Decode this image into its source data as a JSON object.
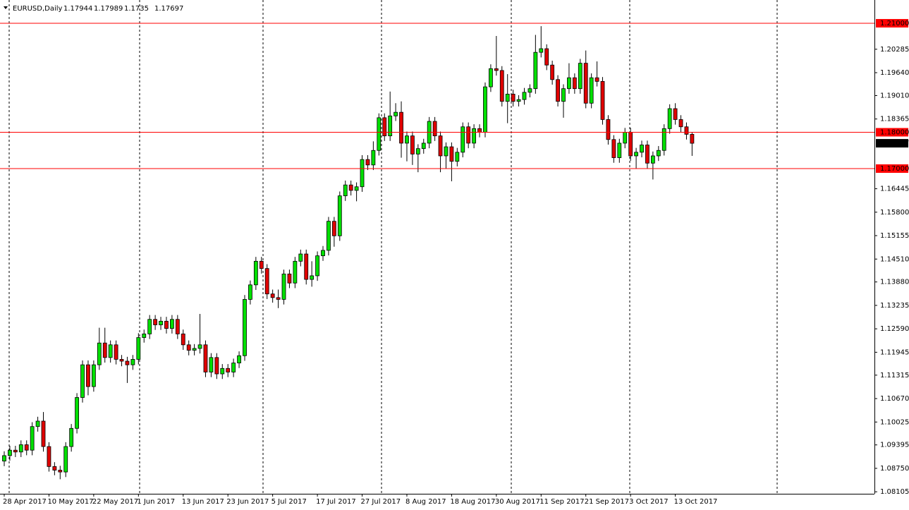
{
  "chart_data": {
    "type": "candlestick",
    "symbol": "EURUSD,Daily",
    "categories": [
      "28 Apr 2017",
      null,
      null,
      null,
      null,
      null,
      null,
      null,
      "10 May 2017",
      null,
      null,
      null,
      null,
      null,
      null,
      null,
      "22 May 2017",
      null,
      null,
      null,
      null,
      null,
      null,
      null,
      "1 Jun 2017",
      null,
      null,
      null,
      null,
      null,
      null,
      null,
      "13 Jun 2017",
      null,
      null,
      null,
      null,
      null,
      null,
      null,
      "23 Jun 2017",
      null,
      null,
      null,
      null,
      null,
      null,
      null,
      "5 Jul 2017",
      null,
      null,
      null,
      null,
      null,
      null,
      null,
      "17 Jul 2017",
      null,
      null,
      null,
      null,
      null,
      null,
      null,
      "27 Jul 2017",
      null,
      null,
      null,
      null,
      null,
      null,
      null,
      "8 Aug 2017",
      null,
      null,
      null,
      null,
      null,
      null,
      null,
      "18 Aug 2017",
      null,
      null,
      null,
      null,
      null,
      null,
      null,
      "30 Aug 2017",
      null,
      null,
      null,
      null,
      null,
      null,
      null,
      "11 Sep 2017",
      null,
      null,
      null,
      null,
      null,
      null,
      null,
      "21 Sep 2017",
      null,
      null,
      null,
      null,
      null,
      null,
      null,
      "3 Oct 2017",
      null,
      null,
      null,
      null,
      null,
      null,
      null,
      "13 Oct 2017",
      null,
      null,
      null
    ],
    "open": [
      1.0895,
      1.091,
      1.0925,
      1.092,
      1.094,
      1.0925,
      1.099,
      1.1005,
      1.0935,
      1.088,
      1.087,
      1.0865,
      1.0935,
      1.0985,
      1.107,
      1.116,
      1.11,
      1.116,
      1.122,
      1.118,
      1.1215,
      1.1175,
      1.117,
      1.116,
      1.1175,
      1.1235,
      1.1245,
      1.1285,
      1.127,
      1.128,
      1.126,
      1.1285,
      1.1245,
      1.1215,
      1.12,
      1.1205,
      1.1215,
      1.114,
      1.118,
      1.1135,
      1.115,
      1.114,
      1.1165,
      1.1185,
      1.134,
      1.138,
      1.1445,
      1.1425,
      1.1355,
      1.1345,
      1.134,
      1.141,
      1.1385,
      1.1445,
      1.1465,
      1.1395,
      1.1405,
      1.146,
      1.1475,
      1.1555,
      1.1515,
      1.1625,
      1.1655,
      1.164,
      1.165,
      1.1725,
      1.171,
      1.175,
      1.184,
      1.179,
      1.1845,
      1.1855,
      1.177,
      1.179,
      1.174,
      1.1755,
      1.177,
      1.183,
      1.179,
      1.1735,
      1.176,
      1.172,
      1.1745,
      1.1815,
      1.177,
      1.181,
      1.18,
      1.1925,
      1.1975,
      1.197,
      1.1885,
      1.1905,
      1.1885,
      1.189,
      1.191,
      1.192,
      1.202,
      1.203,
      1.1985,
      1.1945,
      1.1885,
      1.192,
      1.195,
      1.192,
      1.199,
      1.188,
      1.195,
      1.194,
      1.1835,
      1.178,
      1.173,
      1.177,
      1.18,
      1.1735,
      1.1745,
      1.1765,
      1.1715,
      1.1735,
      1.175,
      1.181,
      1.1865,
      1.1835,
      1.1815,
      1.17944
    ],
    "high": [
      1.0922,
      1.0937,
      1.0937,
      1.0952,
      1.0952,
      1.1002,
      1.1017,
      1.103,
      1.0947,
      1.0892,
      1.0882,
      1.0947,
      1.0997,
      1.1082,
      1.1172,
      1.1172,
      1.1172,
      1.1262,
      1.1262,
      1.1227,
      1.1227,
      1.1187,
      1.1182,
      1.1187,
      1.1247,
      1.1257,
      1.1297,
      1.1297,
      1.1292,
      1.1292,
      1.1297,
      1.1297,
      1.1257,
      1.1227,
      1.1217,
      1.13,
      1.1227,
      1.1192,
      1.1192,
      1.1162,
      1.1162,
      1.1177,
      1.1197,
      1.1352,
      1.1392,
      1.1457,
      1.1457,
      1.1437,
      1.1367,
      1.1367,
      1.1422,
      1.1422,
      1.1457,
      1.1477,
      1.1477,
      1.1445,
      1.1472,
      1.1487,
      1.1567,
      1.1567,
      1.1637,
      1.1667,
      1.1667,
      1.1662,
      1.1737,
      1.1737,
      1.1775,
      1.1852,
      1.1852,
      1.1912,
      1.188,
      1.1885,
      1.1802,
      1.1802,
      1.1767,
      1.1782,
      1.1842,
      1.1842,
      1.1802,
      1.1772,
      1.1772,
      1.1757,
      1.1827,
      1.1827,
      1.1822,
      1.1822,
      1.1937,
      1.1987,
      1.2065,
      1.1982,
      1.196,
      1.1917,
      1.1902,
      1.1922,
      1.1932,
      1.2068,
      1.2092,
      1.2042,
      1.1997,
      1.1957,
      1.1932,
      1.199,
      1.1962,
      1.2002,
      1.2025,
      1.1962,
      1.1995,
      1.1952,
      1.1847,
      1.1792,
      1.1782,
      1.1812,
      1.1812,
      1.1757,
      1.1777,
      1.1777,
      1.1747,
      1.1762,
      1.1822,
      1.1877,
      1.188,
      1.1847,
      1.1827,
      1.17989
    ],
    "low": [
      1.0881,
      1.0896,
      1.0906,
      1.0906,
      1.0911,
      1.0911,
      1.0976,
      1.0921,
      1.0866,
      1.0856,
      1.0845,
      1.0851,
      1.0921,
      1.0971,
      1.1056,
      1.1076,
      1.1086,
      1.1146,
      1.1166,
      1.1166,
      1.1161,
      1.1156,
      1.111,
      1.1146,
      1.1161,
      1.1221,
      1.1231,
      1.1256,
      1.1256,
      1.1246,
      1.1246,
      1.1231,
      1.1201,
      1.1186,
      1.1186,
      1.1191,
      1.1126,
      1.1126,
      1.1121,
      1.1121,
      1.1126,
      1.1126,
      1.1151,
      1.1171,
      1.1326,
      1.1366,
      1.1411,
      1.1341,
      1.1331,
      1.1316,
      1.1326,
      1.1371,
      1.1371,
      1.1431,
      1.1381,
      1.1375,
      1.1391,
      1.1446,
      1.1461,
      1.1485,
      1.1501,
      1.1611,
      1.1626,
      1.161,
      1.1636,
      1.1696,
      1.1696,
      1.1736,
      1.1776,
      1.1776,
      1.1831,
      1.173,
      1.172,
      1.171,
      1.169,
      1.1741,
      1.1756,
      1.1776,
      1.169,
      1.17,
      1.1665,
      1.1706,
      1.1731,
      1.1756,
      1.1756,
      1.1786,
      1.1786,
      1.1911,
      1.1956,
      1.1871,
      1.1825,
      1.1871,
      1.1871,
      1.1876,
      1.1896,
      1.1906,
      1.2006,
      1.1971,
      1.1931,
      1.1871,
      1.184,
      1.1906,
      1.1906,
      1.1906,
      1.1866,
      1.1866,
      1.1926,
      1.1821,
      1.1766,
      1.1716,
      1.1716,
      1.1756,
      1.1721,
      1.1701,
      1.1731,
      1.1701,
      1.167,
      1.1721,
      1.1736,
      1.1796,
      1.1821,
      1.1801,
      1.178,
      1.1735
    ],
    "close": [
      1.091,
      1.0925,
      1.092,
      1.094,
      1.0925,
      1.099,
      1.1005,
      1.0935,
      1.088,
      1.087,
      1.0865,
      1.0935,
      1.0985,
      1.107,
      1.116,
      1.11,
      1.116,
      1.122,
      1.118,
      1.1215,
      1.1175,
      1.117,
      1.116,
      1.1175,
      1.1235,
      1.1245,
      1.1285,
      1.127,
      1.128,
      1.126,
      1.1285,
      1.1245,
      1.1215,
      1.12,
      1.1205,
      1.1215,
      1.114,
      1.118,
      1.1135,
      1.115,
      1.114,
      1.1165,
      1.1185,
      1.134,
      1.138,
      1.1445,
      1.1425,
      1.1355,
      1.1345,
      1.134,
      1.141,
      1.1385,
      1.1445,
      1.1465,
      1.1395,
      1.1405,
      1.146,
      1.1475,
      1.1555,
      1.1515,
      1.1625,
      1.1655,
      1.164,
      1.165,
      1.1725,
      1.171,
      1.175,
      1.184,
      1.179,
      1.1845,
      1.1855,
      1.177,
      1.179,
      1.174,
      1.1755,
      1.177,
      1.183,
      1.179,
      1.1735,
      1.176,
      1.172,
      1.1745,
      1.1815,
      1.177,
      1.181,
      1.18,
      1.1925,
      1.1975,
      1.197,
      1.1885,
      1.1905,
      1.1885,
      1.189,
      1.191,
      1.192,
      1.202,
      1.203,
      1.1985,
      1.1945,
      1.1885,
      1.192,
      1.195,
      1.192,
      1.199,
      1.188,
      1.195,
      1.194,
      1.1835,
      1.178,
      1.173,
      1.177,
      1.18,
      1.1735,
      1.1745,
      1.1765,
      1.1715,
      1.1735,
      1.175,
      1.181,
      1.1865,
      1.1835,
      1.1815,
      1.17944,
      1.17697
    ],
    "up_color": "#00e000",
    "down_color": "#e00000",
    "wick_color": "#000000",
    "ylim": [
      1.0805,
      1.2164
    ],
    "yticks": [
      1.20285,
      {
        "value": 1.1964,
        "label": "1.19640"
      },
      {
        "value": 1.1901,
        "label": "1.19010"
      },
      1.18365,
      1.16445,
      {
        "value": 1.158,
        "label": "1.15800"
      },
      1.15155,
      {
        "value": 1.1451,
        "label": "1.14510"
      },
      {
        "value": 1.1388,
        "label": "1.13880"
      },
      1.13235,
      {
        "value": 1.1259,
        "label": "1.12590"
      },
      1.11945,
      1.11315,
      {
        "value": 1.1067,
        "label": "1.10670"
      },
      1.10025,
      1.09395,
      {
        "value": 1.0875,
        "label": "1.08750"
      },
      1.08105
    ],
    "hlines": [
      {
        "value": 1.21,
        "label": "1.21000"
      },
      {
        "value": 1.18,
        "label": "1.18000"
      },
      {
        "value": 1.17,
        "label": "1.17000"
      }
    ],
    "hline_color": "#ff0000",
    "last_price_color": "#000000"
  }
}
